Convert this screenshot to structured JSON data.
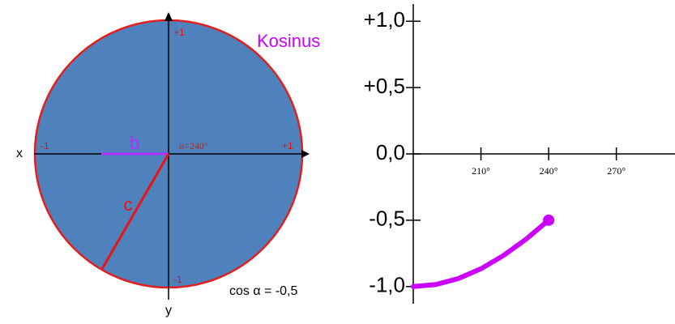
{
  "circle": {
    "title": "Kosinus",
    "x_label": "x",
    "y_label": "y",
    "top": "+1",
    "bottom": "-1",
    "left": "-1",
    "right": "+1",
    "b_label": "b",
    "c_label": "c",
    "angle_label": "α=240°",
    "formula": "cos α = -0,5"
  },
  "chart_data": {
    "type": "line",
    "x": [
      180,
      190,
      200,
      210,
      220,
      230,
      240
    ],
    "series": [
      {
        "name": null,
        "color": "#cc00ff",
        "values": [
          -1,
          -0.985,
          -0.94,
          -0.866,
          -0.766,
          -0.643,
          -0.5
        ]
      }
    ],
    "xlim": [
      180,
      296
    ],
    "ylim": [
      -1.13,
      1.13
    ],
    "xticks": [
      {
        "value": 210,
        "label": "210°"
      },
      {
        "value": 240,
        "label": "240°"
      },
      {
        "value": 270,
        "label": "270°"
      }
    ],
    "yticks": [
      {
        "value": 1,
        "label": "+1,0"
      },
      {
        "value": 0.5,
        "label": "+0,5"
      },
      {
        "value": 0,
        "label": "0,0"
      },
      {
        "value": -0.5,
        "label": "-0,5"
      },
      {
        "value": -1,
        "label": "-1,0"
      }
    ]
  }
}
